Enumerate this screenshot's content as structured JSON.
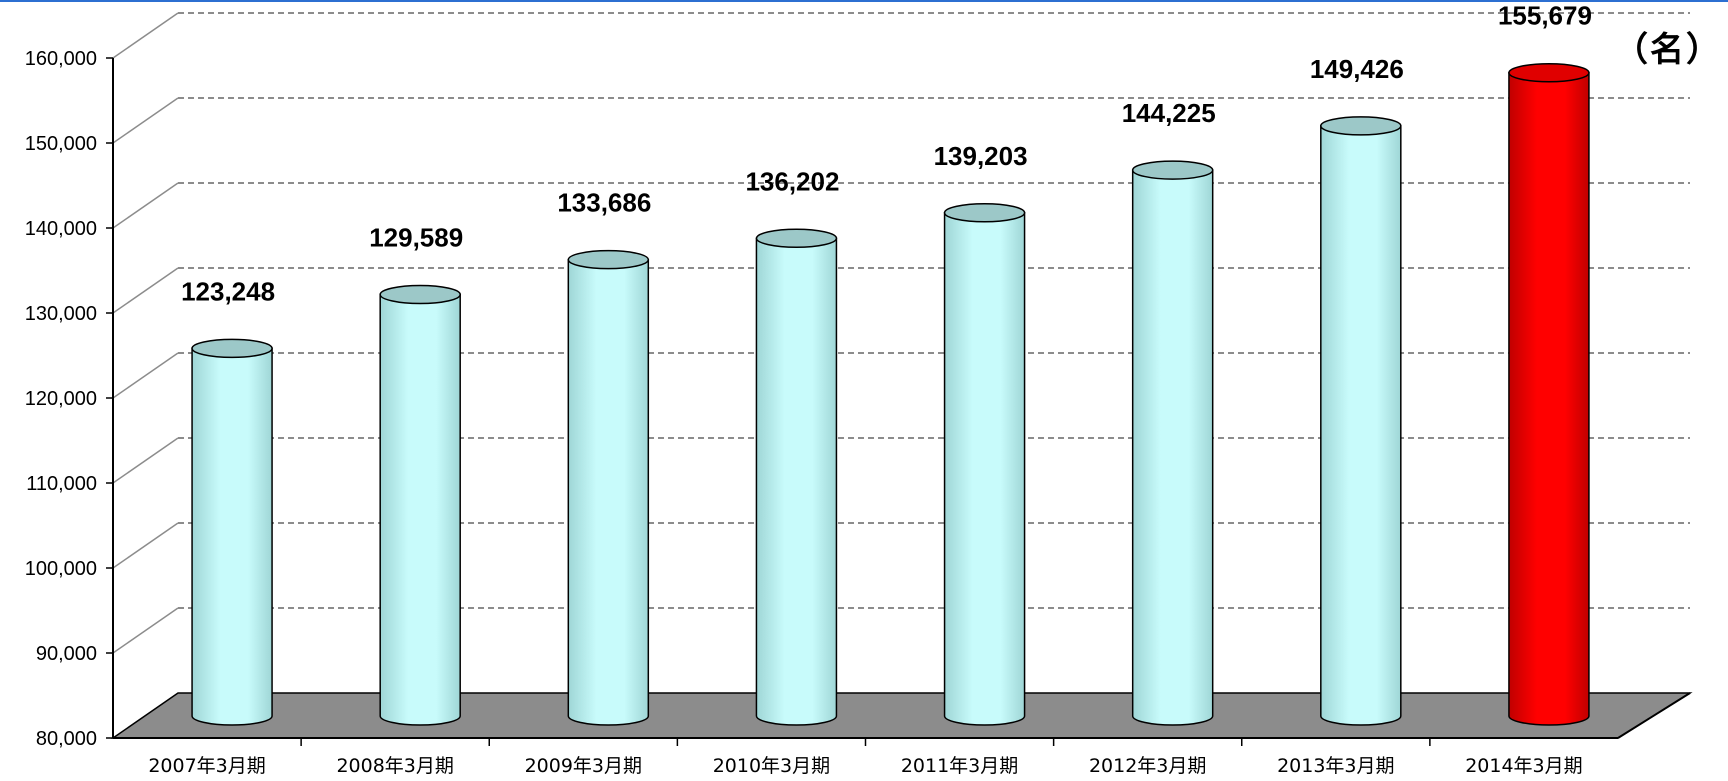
{
  "chart_data": {
    "type": "bar",
    "style": "3d-cylinder",
    "unit": "（名）",
    "categories": [
      "2007年3月期",
      "2008年3月期",
      "2009年3月期",
      "2010年3月期",
      "2011年3月期",
      "2012年3月期",
      "2013年3月期",
      "2014年3月期"
    ],
    "values": [
      123248,
      129589,
      133686,
      136202,
      139203,
      144225,
      149426,
      155679
    ],
    "value_labels": [
      "123,248",
      "129,589",
      "133,686",
      "136,202",
      "139,203",
      "144,225",
      "149,426",
      "155,679"
    ],
    "yticks": [
      80000,
      90000,
      100000,
      110000,
      120000,
      130000,
      140000,
      150000,
      160000
    ],
    "ytick_labels": [
      "80,000",
      "90,000",
      "100,000",
      "110,000",
      "120,000",
      "130,000",
      "140,000",
      "150,000",
      "160,000"
    ],
    "ylim": [
      80000,
      160000
    ],
    "grid": true,
    "legend": "none",
    "colors": {
      "bar": "#c8fbfb",
      "bar_shade": "#9fd6d6",
      "bar_top": "#9cc8c8",
      "highlight_bar": "#ff0000",
      "highlight_shade": "#c00000",
      "highlight_top": "#e00000",
      "floor": "#8c8c8c",
      "grid": "#8c8c8c",
      "top_rule": "#2c6fd1"
    },
    "highlight_index": 7
  }
}
